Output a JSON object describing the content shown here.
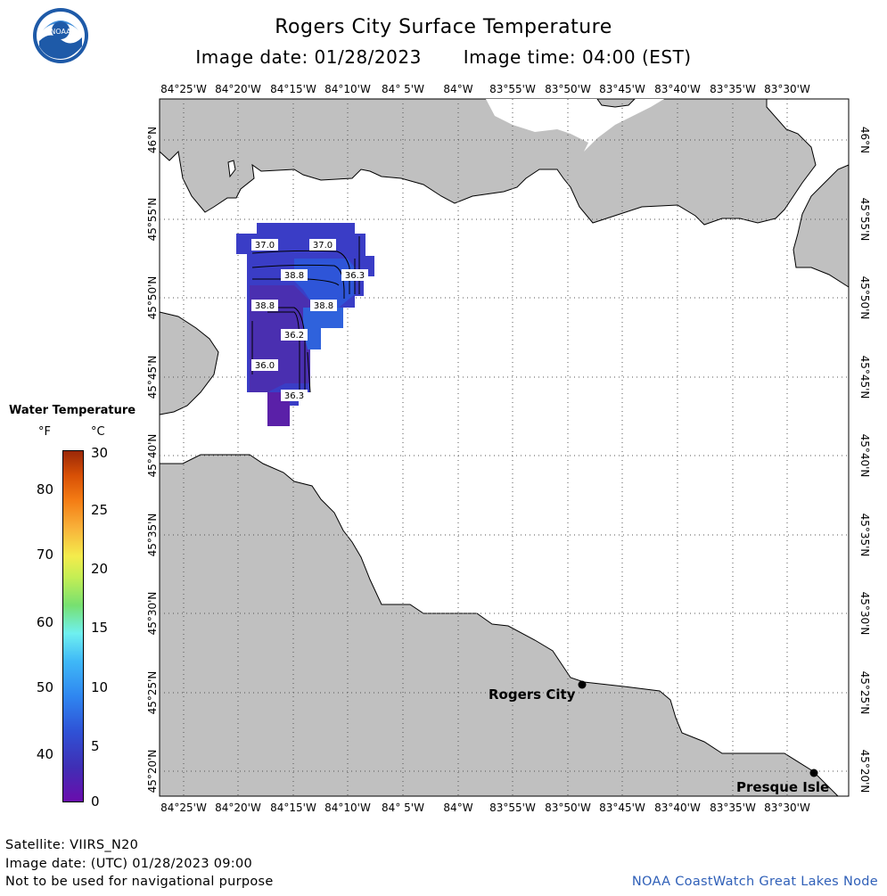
{
  "title": "Rogers City Surface Temperature",
  "image_date": "Image date: 01/28/2023",
  "image_time": "Image time: 04:00 (EST)",
  "longitude_labels": [
    "84°25'W",
    "84°20'W",
    "84°15'W",
    "84°10'W",
    "84° 5'W",
    "84°W",
    "83°55'W",
    "83°50'W",
    "83°45'W",
    "83°40'W",
    "83°35'W",
    "83°30'W"
  ],
  "latitude_labels": [
    "46°N",
    "45°55'N",
    "45°50'N",
    "45°45'N",
    "45°40'N",
    "45°35'N",
    "45°30'N",
    "45°25'N",
    "45°20'N"
  ],
  "legend": {
    "title": "Water Temperature",
    "unit_f": "°F",
    "unit_c": "°C",
    "f_ticks": [
      "80",
      "70",
      "60",
      "50",
      "40"
    ],
    "c_ticks": [
      "30",
      "25",
      "20",
      "15",
      "10",
      "5",
      "0"
    ]
  },
  "contour_labels": [
    "37.0",
    "37.0",
    "38.8",
    "36.3",
    "38.8",
    "38.8",
    "36.2",
    "36.0",
    "36.3"
  ],
  "places": [
    {
      "name": "Rogers City"
    },
    {
      "name": "Presque Isle"
    }
  ],
  "colors": {
    "land": "#c0c0c0",
    "water": "#ffffff",
    "credit": "#3060b8"
  },
  "footer": {
    "satellite": "Satellite: VIIRS_N20",
    "utc_date": "Image date: (UTC) 01/28/2023  09:00",
    "disclaimer": "Not to be used for navigational purpose",
    "credit": "NOAA CoastWatch Great Lakes Node"
  }
}
